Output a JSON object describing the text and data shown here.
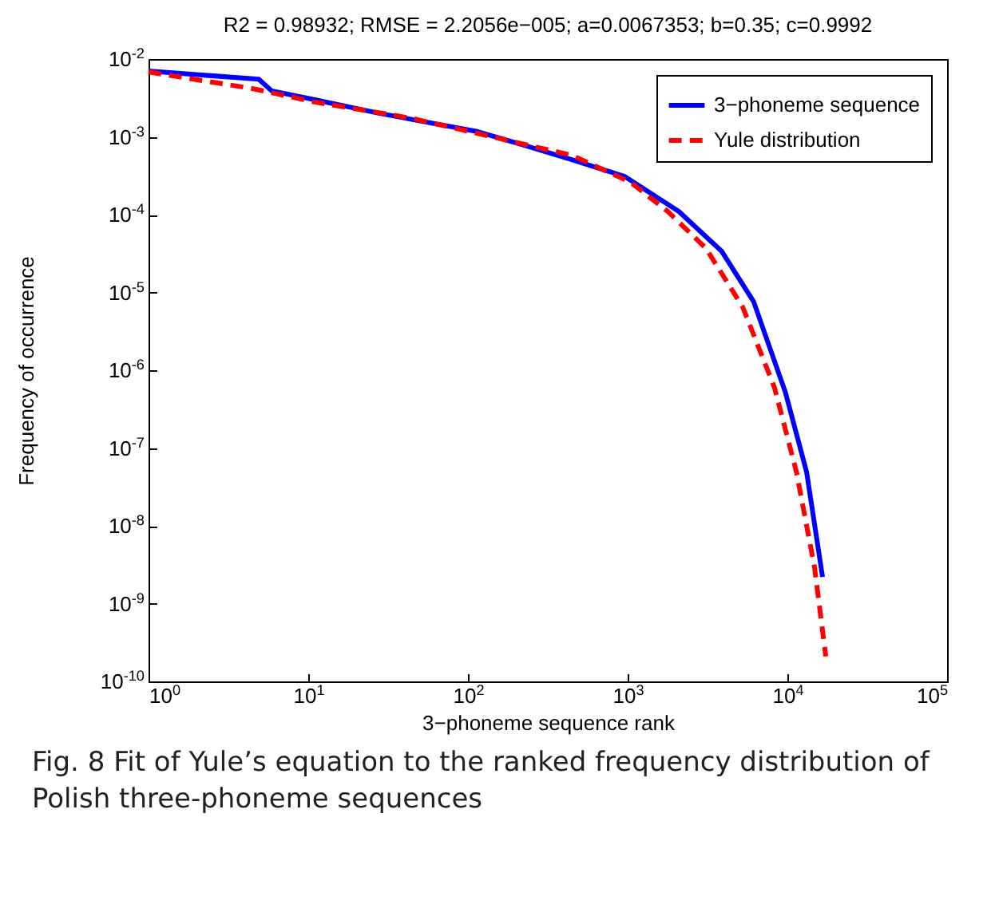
{
  "chart_data": {
    "type": "line",
    "title": "R2 = 0.98932; RMSE = 2.2056e−005; a=0.0067353; b=0.35; c=0.9992",
    "xlabel": "3−phoneme sequence rank",
    "ylabel": "Frequency of occurrence",
    "annotations": [
      "Fig. 8 Fit of Yule’s equation to the ranked frequency distribution of Polish three-phoneme sequences"
    ],
    "log": "xy",
    "grid": false,
    "legend": "top right",
    "xlim": [
      1,
      100000
    ],
    "ylim": [
      1e-10,
      0.01
    ],
    "xticks": [
      {
        "value": 1,
        "label": "10$^{0}$"
      },
      {
        "value": 10,
        "label": "10$^{1}$"
      },
      {
        "value": 100,
        "label": "10$^{2}$"
      },
      {
        "value": 1000,
        "label": "10$^{3}$"
      },
      {
        "value": 10000,
        "label": "10$^{4}$"
      },
      {
        "value": 100000,
        "label": "10$^{5}$"
      }
    ],
    "yticks": [
      {
        "value": 1e-10,
        "label": "10$^{-10}$"
      },
      {
        "value": 1e-09,
        "label": "10$^{-9}$"
      },
      {
        "value": 1e-08,
        "label": "10$^{-8}$"
      },
      {
        "value": 1e-07,
        "label": "10$^{-7}$"
      },
      {
        "value": 1e-06,
        "label": "10$^{-6}$"
      },
      {
        "value": 1e-05,
        "label": "10$^{-5}$"
      },
      {
        "value": 0.0001,
        "label": "10$^{-4}$"
      },
      {
        "value": 0.001,
        "label": "10$^{-3}$"
      },
      {
        "value": 0.01,
        "label": "10$^{-2}$"
      }
    ],
    "series": [
      {
        "name": "3−phoneme sequence",
        "color": "#0000ff",
        "line_style": "solid",
        "x": [
          1,
          4.9,
          5.9,
          11,
          28,
          112,
          219,
          447,
          955,
          2090,
          3870,
          6150,
          9720,
          13200,
          16600
        ],
        "values": [
          0.007,
          0.0055,
          0.0039,
          0.003,
          0.002,
          0.00118,
          0.00079,
          0.00051,
          0.00031,
          0.00011,
          3.4e-05,
          7.6e-06,
          5.2e-07,
          4.9e-08,
          2.2e-09
        ]
      },
      {
        "name": "Yule distribution",
        "color": "#ff0000",
        "line_style": "dashed",
        "x": [
          1,
          4.4,
          11,
          44,
          447,
          1045,
          1780,
          3090,
          5250,
          8300,
          11400,
          14800,
          17400
        ],
        "values": [
          0.0068,
          0.0042,
          0.0028,
          0.00174,
          0.00058,
          0.00026,
          0.00011,
          3.7e-05,
          6.5e-06,
          6e-07,
          4.9e-08,
          2.9e-09,
          2.1e-10
        ]
      }
    ]
  }
}
